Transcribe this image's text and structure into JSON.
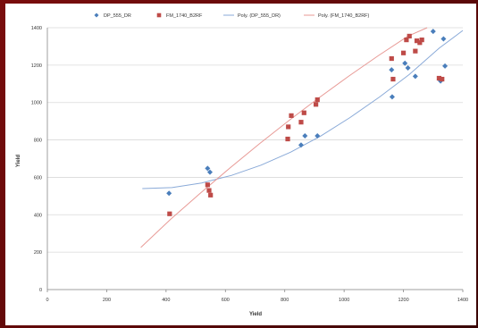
{
  "chart_data": {
    "type": "scatter",
    "xlabel": "Yield",
    "ylabel": "Yield",
    "xlim": [
      0,
      1400
    ],
    "ylim": [
      0,
      1400
    ],
    "xticks": [
      0,
      200,
      400,
      600,
      800,
      1000,
      1200,
      1400
    ],
    "yticks": [
      0,
      200,
      400,
      600,
      800,
      1000,
      1200,
      1400
    ],
    "grid": "horizontal",
    "legend_position": "top",
    "series": [
      {
        "name": "DP_555_DR",
        "marker": "diamond",
        "color": "#4a7ebb",
        "points": [
          [
            410,
            515
          ],
          [
            540,
            648
          ],
          [
            548,
            628
          ],
          [
            855,
            773
          ],
          [
            868,
            822
          ],
          [
            910,
            822
          ],
          [
            1160,
            1175
          ],
          [
            1162,
            1030
          ],
          [
            1205,
            1210
          ],
          [
            1215,
            1185
          ],
          [
            1240,
            1140
          ],
          [
            1300,
            1380
          ],
          [
            1325,
            1115
          ],
          [
            1335,
            1340
          ],
          [
            1340,
            1195
          ]
        ]
      },
      {
        "name": "FM_1740_B2RF",
        "marker": "square",
        "color": "#be4b48",
        "points": [
          [
            412,
            405
          ],
          [
            540,
            560
          ],
          [
            545,
            530
          ],
          [
            550,
            505
          ],
          [
            810,
            805
          ],
          [
            812,
            870
          ],
          [
            822,
            930
          ],
          [
            855,
            895
          ],
          [
            865,
            945
          ],
          [
            905,
            990
          ],
          [
            910,
            1015
          ],
          [
            1160,
            1235
          ],
          [
            1165,
            1125
          ],
          [
            1200,
            1265
          ],
          [
            1210,
            1335
          ],
          [
            1220,
            1355
          ],
          [
            1240,
            1275
          ],
          [
            1245,
            1330
          ],
          [
            1255,
            1320
          ],
          [
            1262,
            1335
          ],
          [
            1320,
            1130
          ],
          [
            1330,
            1125
          ]
        ]
      },
      {
        "name": "Poly. (DP_555_DR)",
        "line_color": "#8aaad8",
        "trend": [
          [
            320,
            540
          ],
          [
            420,
            545
          ],
          [
            520,
            570
          ],
          [
            620,
            610
          ],
          [
            720,
            665
          ],
          [
            820,
            735
          ],
          [
            920,
            820
          ],
          [
            1020,
            920
          ],
          [
            1120,
            1030
          ],
          [
            1220,
            1150
          ],
          [
            1320,
            1290
          ],
          [
            1400,
            1385
          ]
        ]
      },
      {
        "name": "Poly. (FM_1740_B2RF)",
        "line_color": "#e89a96",
        "trend": [
          [
            315,
            225
          ],
          [
            415,
            375
          ],
          [
            515,
            515
          ],
          [
            615,
            650
          ],
          [
            715,
            780
          ],
          [
            815,
            905
          ],
          [
            915,
            1025
          ],
          [
            1015,
            1140
          ],
          [
            1115,
            1250
          ],
          [
            1215,
            1355
          ],
          [
            1280,
            1420
          ]
        ]
      }
    ]
  }
}
